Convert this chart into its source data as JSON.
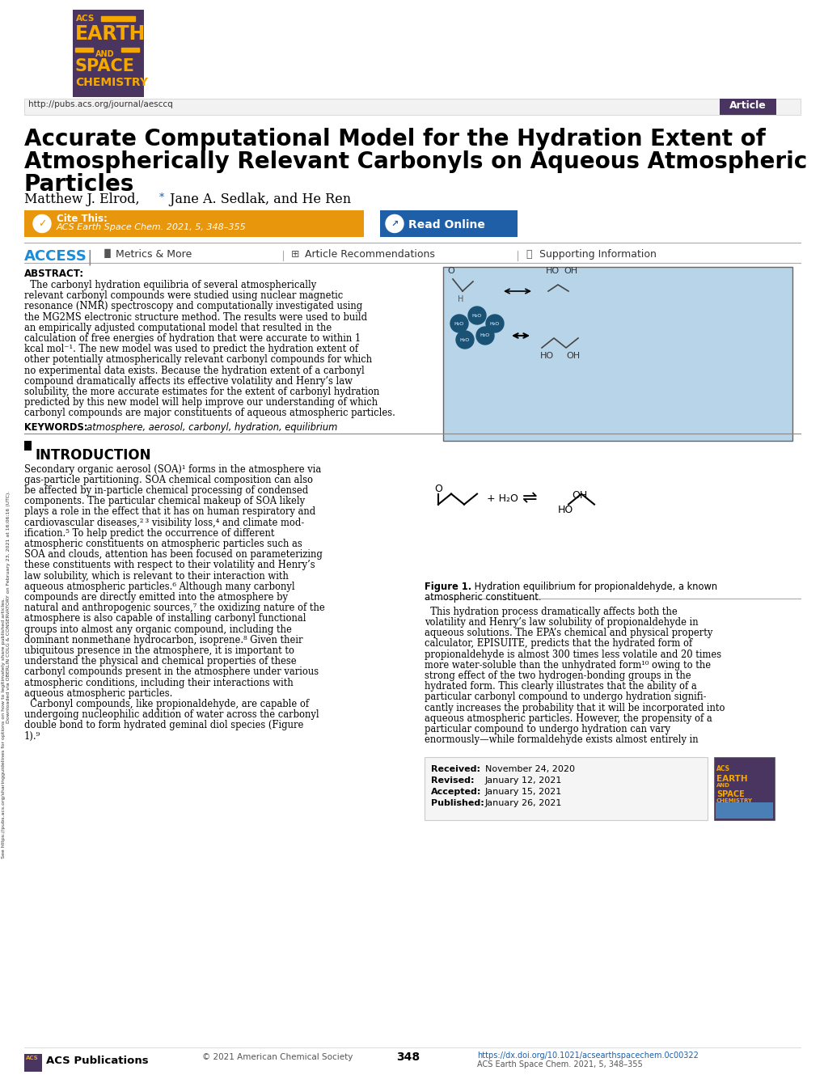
{
  "bg_color": "#ffffff",
  "logo_bg": "#4a3560",
  "logo_gold": "#f5a800",
  "url_text": "http://pubs.acs.org/journal/aesccq",
  "article_tag": "Article",
  "article_tag_bg": "#4a3560",
  "title_line1": "Accurate Computational Model for the Hydration Extent of",
  "title_line2": "Atmospherically Relevant Carbonyls on Aqueous Atmospheric",
  "title_line3": "Particles",
  "authors": "Matthew J. Elrod,",
  "authors2": " Jane A. Sedlak, and He Ren",
  "cite_box_color": "#e8960c",
  "cite_text": "ACS Earth Space Chem. 2021, 5, 348–355",
  "read_online_box_color": "#1e5fa8",
  "read_online_text": "Read Online",
  "access_color": "#1a8cd8",
  "metrics_text": "Metrics & More",
  "recommendations_text": "Article Recommendations",
  "supporting_text": "Supporting Information",
  "abstract_img_color": "#b8d4e8",
  "received": "Received:",
  "received_date": "  November 24, 2020",
  "revised": "Revised:",
  "revised_date": "    January 12, 2021",
  "accepted": "Accepted:",
  "accepted_date": "  January 15, 2021",
  "published": "Published:",
  "published_date": " January 26, 2021",
  "footer_copyright": "© 2021 American Chemical Society",
  "footer_page": "348",
  "footer_doi": "https://dx.doi.org/10.1021/acsearthspacechem.0c00322",
  "footer_journal": "ACS Earth Space Chem. 2021, 5, 348–355"
}
